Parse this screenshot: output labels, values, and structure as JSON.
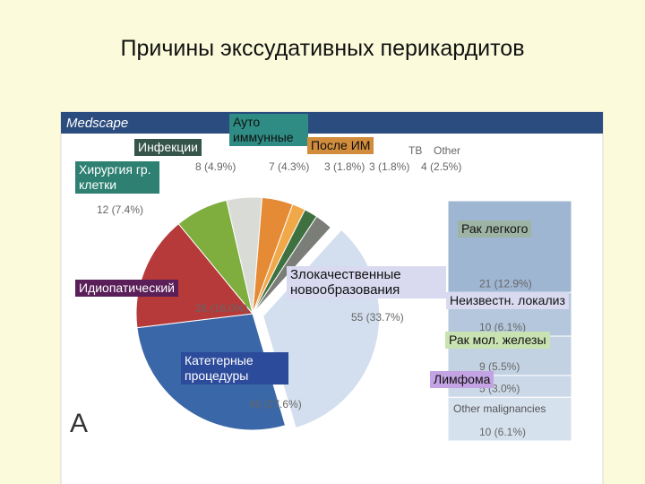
{
  "chart_data": {
    "type": "pie",
    "title": "Причины экссудативных перикардитов",
    "source": "Medscape",
    "panel_label": "A",
    "categories": [
      "Инфекции",
      "Ауто иммунные",
      "После ИМ",
      "TB",
      "Other",
      "Злокачественные новообразования",
      "Катетерные процедуры",
      "Идиопатический",
      "Хирургия гр. клетки"
    ],
    "values": [
      8,
      7,
      3,
      3,
      4,
      55,
      45,
      26,
      12
    ],
    "value_labels": [
      "8 (4.9%)",
      "7 (4.3%)",
      "3 (1.8%)",
      "3 (1.8%)",
      "4 (2.5%)",
      "55 (33.7%)",
      "45 (27.6%)",
      "26 (16.0%)",
      "12 (7.4%)"
    ],
    "colors": [
      "#d9dcd6",
      "#e58a35",
      "#f0a848",
      "#3f7040",
      "#7b7d78",
      "#d3dfee",
      "#3a67a8",
      "#b63a3a",
      "#7fae3e"
    ],
    "breakdown": {
      "categories": [
        "Рак легкого",
        "Неизвестн. локализ",
        "Рак мол. железы",
        "Лимфома",
        "Other malignancies"
      ],
      "values": [
        21,
        10,
        9,
        5,
        10
      ],
      "value_labels": [
        "21 (12.9%)",
        "10 (6.1%)",
        "9 (5.5%)",
        "5 (3.0%)",
        "10 (6.1%)"
      ],
      "colors": [
        "#9fb6d3",
        "#b5c7dc",
        "#c3d2e3",
        "#cbd8e7",
        "#d6e1ee"
      ]
    }
  }
}
